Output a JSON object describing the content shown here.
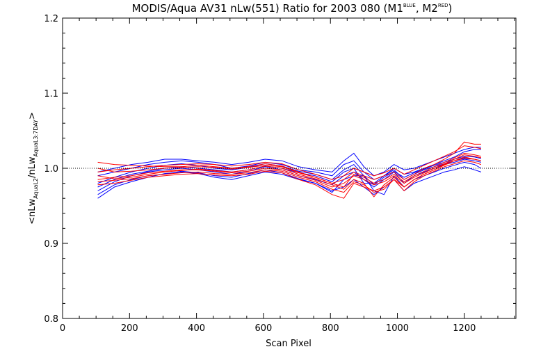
{
  "chart_data": {
    "type": "line",
    "title": {
      "main": "MODIS/Aqua AV31 nLw(551) Ratio for 2003 080 (M1",
      "sup1": "BLUE",
      "mid": ", M2",
      "sup2": "RED",
      "end": ")"
    },
    "xlabel": "Scan Pixel",
    "ylabel": {
      "open": "<nLw",
      "sub1": "AquaL2",
      "slash": "/nLw",
      "sub2": "AquaL3:7DAY",
      "close": ">"
    },
    "xlim": [
      0,
      1354
    ],
    "ylim": [
      0.8,
      1.2
    ],
    "xticks": [
      0,
      200,
      400,
      600,
      800,
      1000,
      1200
    ],
    "yticks": [
      0.8,
      0.9,
      1.0,
      1.1,
      1.2
    ],
    "ytick_labels": [
      "0.8",
      "0.9",
      "1.0",
      "1.1",
      "1.2"
    ],
    "reference_line": 1.0,
    "grid": false,
    "x": [
      105,
      155,
      205,
      255,
      305,
      355,
      405,
      455,
      505,
      555,
      605,
      655,
      705,
      755,
      805,
      840,
      870,
      900,
      930,
      960,
      990,
      1020,
      1050,
      1080,
      1110,
      1140,
      1170,
      1200,
      1230,
      1250
    ],
    "series": [
      {
        "group": "M1",
        "color": "#0000ff",
        "values": [
          0.96,
          0.975,
          0.982,
          0.988,
          0.993,
          0.995,
          0.993,
          0.988,
          0.985,
          0.99,
          0.995,
          0.992,
          0.985,
          0.98,
          0.97,
          0.975,
          0.985,
          0.975,
          0.965,
          0.975,
          0.985,
          0.97,
          0.98,
          0.985,
          0.99,
          0.995,
          0.998,
          1.002,
          0.998,
          0.995
        ]
      },
      {
        "group": "M1",
        "color": "#0000ff",
        "values": [
          0.97,
          0.982,
          0.99,
          0.995,
          0.998,
          1.0,
          0.998,
          0.995,
          0.992,
          0.996,
          1.002,
          0.998,
          0.99,
          0.985,
          0.978,
          0.99,
          0.995,
          0.985,
          0.975,
          0.985,
          0.995,
          0.98,
          0.99,
          0.995,
          1.0,
          1.005,
          1.008,
          1.012,
          1.01,
          1.008
        ]
      },
      {
        "group": "M1",
        "color": "#0000ff",
        "values": [
          0.99,
          0.995,
          1.0,
          1.005,
          1.008,
          1.01,
          1.008,
          1.005,
          1.0,
          1.003,
          1.008,
          1.005,
          0.998,
          0.995,
          0.99,
          1.005,
          1.01,
          0.995,
          0.985,
          0.99,
          1.0,
          0.992,
          0.995,
          1.0,
          1.005,
          1.01,
          1.015,
          1.022,
          1.025,
          1.025
        ]
      },
      {
        "group": "M1",
        "color": "#0000ff",
        "values": [
          0.965,
          0.978,
          0.985,
          0.99,
          0.992,
          0.996,
          0.994,
          0.99,
          0.988,
          0.993,
          0.998,
          0.994,
          0.986,
          0.98,
          0.968,
          0.985,
          0.99,
          0.99,
          0.97,
          0.965,
          0.99,
          0.975,
          0.985,
          0.99,
          0.995,
          1.0,
          1.004,
          1.008,
          1.005,
          1.0
        ]
      },
      {
        "group": "M1",
        "color": "#0000ff",
        "values": [
          0.995,
          1.0,
          1.005,
          1.008,
          1.012,
          1.012,
          1.01,
          1.008,
          1.005,
          1.008,
          1.012,
          1.01,
          1.002,
          0.998,
          0.995,
          1.01,
          1.02,
          1.002,
          0.99,
          0.995,
          1.005,
          0.998,
          1.0,
          1.005,
          1.01,
          1.015,
          1.02,
          1.025,
          1.028,
          1.028
        ]
      },
      {
        "group": "M1",
        "color": "#0000ff",
        "values": [
          0.975,
          0.985,
          0.992,
          0.996,
          1.0,
          1.002,
          1.0,
          0.998,
          0.995,
          0.998,
          1.003,
          1.0,
          0.994,
          0.99,
          0.982,
          0.995,
          1.0,
          0.98,
          0.98,
          0.99,
          0.998,
          0.985,
          0.992,
          0.998,
          1.002,
          1.006,
          1.01,
          1.014,
          1.012,
          1.01
        ]
      },
      {
        "group": "M1",
        "color": "#0000ff",
        "values": [
          0.98,
          0.988,
          0.995,
          1.0,
          1.004,
          1.006,
          1.004,
          1.0,
          0.998,
          1.001,
          1.006,
          1.003,
          0.996,
          0.992,
          0.985,
          0.998,
          1.005,
          0.99,
          0.978,
          0.988,
          0.996,
          0.988,
          0.994,
          0.999,
          1.004,
          1.008,
          1.012,
          1.016,
          1.015,
          1.013
        ]
      },
      {
        "group": "M2",
        "color": "#ff0000",
        "values": [
          1.008,
          1.005,
          1.004,
          1.003,
          1.002,
          1.002,
          1.004,
          1.002,
          1.0,
          1.002,
          1.006,
          1.003,
          0.995,
          0.988,
          0.98,
          0.985,
          0.995,
          0.99,
          0.985,
          0.99,
          0.995,
          0.985,
          0.992,
          1.0,
          1.005,
          1.012,
          1.02,
          1.035,
          1.032,
          1.032
        ]
      },
      {
        "group": "M2",
        "color": "#ff0000",
        "values": [
          0.985,
          0.988,
          0.99,
          0.994,
          0.996,
          0.998,
          0.998,
          0.996,
          0.994,
          0.996,
          1.0,
          0.998,
          0.99,
          0.984,
          0.975,
          0.98,
          0.99,
          0.985,
          0.978,
          0.982,
          0.99,
          0.98,
          0.988,
          0.994,
          1.0,
          1.006,
          1.012,
          1.018,
          1.016,
          1.014
        ]
      },
      {
        "group": "M2",
        "color": "#ff0000",
        "values": [
          0.978,
          0.98,
          0.984,
          0.988,
          0.99,
          0.992,
          0.993,
          0.991,
          0.99,
          0.992,
          0.996,
          0.994,
          0.985,
          0.978,
          0.965,
          0.96,
          0.98,
          0.975,
          0.97,
          0.975,
          0.985,
          0.97,
          0.982,
          0.99,
          0.996,
          1.002,
          1.006,
          1.01,
          1.008,
          1.005
        ]
      },
      {
        "group": "M2",
        "color": "#ff0000",
        "values": [
          0.995,
          0.998,
          1.0,
          1.002,
          1.004,
          1.005,
          1.006,
          1.005,
          1.003,
          1.005,
          1.008,
          1.006,
          0.998,
          0.992,
          0.985,
          0.99,
          1.0,
          0.995,
          0.99,
          0.994,
          1.0,
          0.992,
          0.998,
          1.004,
          1.01,
          1.016,
          1.022,
          1.03,
          1.028,
          1.026
        ]
      },
      {
        "group": "M2",
        "color": "#ff0000",
        "values": [
          0.99,
          0.986,
          0.988,
          0.992,
          0.995,
          0.997,
          0.999,
          0.997,
          0.995,
          0.998,
          1.003,
          1.0,
          0.992,
          0.986,
          0.978,
          0.972,
          0.985,
          0.98,
          0.962,
          0.978,
          0.988,
          0.975,
          0.985,
          0.992,
          0.998,
          1.004,
          1.01,
          1.015,
          1.012,
          1.01
        ]
      },
      {
        "group": "M2",
        "color": "#ff0000",
        "values": [
          1.0,
          0.995,
          0.996,
          0.998,
          1.0,
          1.001,
          1.002,
          1.001,
          0.999,
          1.001,
          1.004,
          1.002,
          0.994,
          0.988,
          0.98,
          0.975,
          0.992,
          0.988,
          0.98,
          0.985,
          0.992,
          0.982,
          0.99,
          0.996,
          1.002,
          1.008,
          1.014,
          1.02,
          1.018,
          1.016
        ]
      },
      {
        "group": "M2",
        "color": "#ff0000",
        "values": [
          0.982,
          0.984,
          0.986,
          0.99,
          0.992,
          0.994,
          0.995,
          0.993,
          0.992,
          0.994,
          0.998,
          0.996,
          0.988,
          0.982,
          0.972,
          0.968,
          0.982,
          0.978,
          0.968,
          0.972,
          0.985,
          0.975,
          0.985,
          0.992,
          0.998,
          1.005,
          1.01,
          1.013,
          1.012,
          1.01
        ]
      }
    ]
  }
}
